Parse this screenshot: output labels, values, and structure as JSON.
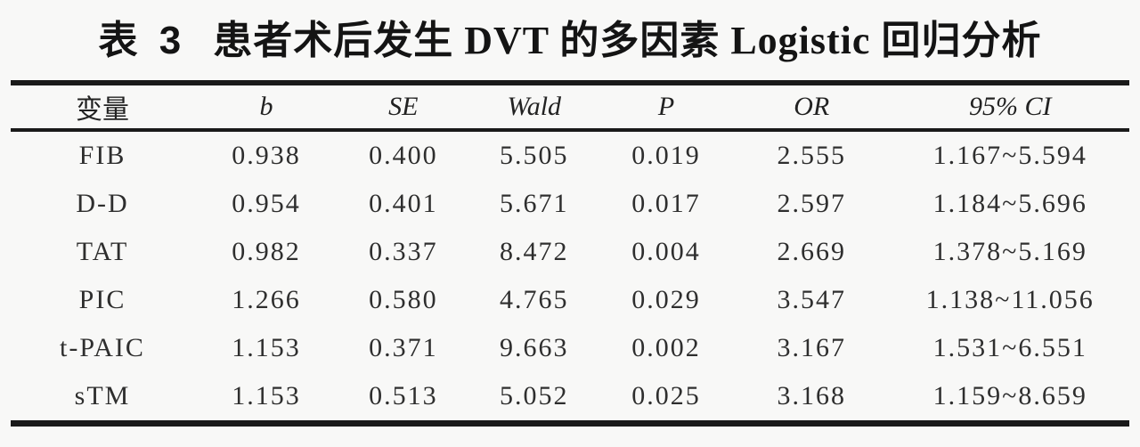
{
  "page": {
    "background": "#f8f8f7",
    "rule_color": "#1a1a1a",
    "text_color": "#2e2e2e"
  },
  "title": {
    "label": "表 3",
    "text": "患者术后发生 DVT 的多因素 Logistic 回归分析"
  },
  "table": {
    "columns": [
      {
        "label": "变量",
        "italic": false
      },
      {
        "label": "b",
        "italic": true
      },
      {
        "label": "SE",
        "italic": true
      },
      {
        "label": "Wald",
        "italic": true
      },
      {
        "label": "P",
        "italic": true
      },
      {
        "label": "OR",
        "italic": true
      },
      {
        "label": "95% CI",
        "italic": true
      }
    ],
    "rows": [
      [
        "FIB",
        "0.938",
        "0.400",
        "5.505",
        "0.019",
        "2.555",
        "1.167~5.594"
      ],
      [
        "D-D",
        "0.954",
        "0.401",
        "5.671",
        "0.017",
        "2.597",
        "1.184~5.696"
      ],
      [
        "TAT",
        "0.982",
        "0.337",
        "8.472",
        "0.004",
        "2.669",
        "1.378~5.169"
      ],
      [
        "PIC",
        "1.266",
        "0.580",
        "4.765",
        "0.029",
        "3.547",
        "1.138~11.056"
      ],
      [
        "t-PAIC",
        "1.153",
        "0.371",
        "9.663",
        "0.002",
        "3.167",
        "1.531~6.551"
      ],
      [
        "sTM",
        "1.153",
        "0.513",
        "5.052",
        "0.025",
        "3.168",
        "1.159~8.659"
      ]
    ]
  },
  "chart_data": {
    "type": "table",
    "title": "表 3 患者术后发生 DVT 的多因素 Logistic 回归分析",
    "columns": [
      "变量",
      "b",
      "SE",
      "Wald",
      "P",
      "OR",
      "95% CI"
    ],
    "rows": [
      [
        "FIB",
        0.938,
        0.4,
        5.505,
        0.019,
        2.555,
        "1.167~5.594"
      ],
      [
        "D-D",
        0.954,
        0.401,
        5.671,
        0.017,
        2.597,
        "1.184~5.696"
      ],
      [
        "TAT",
        0.982,
        0.337,
        8.472,
        0.004,
        2.669,
        "1.378~5.169"
      ],
      [
        "PIC",
        1.266,
        0.58,
        4.765,
        0.029,
        3.547,
        "1.138~11.056"
      ],
      [
        "t-PAIC",
        1.153,
        0.371,
        9.663,
        0.002,
        3.167,
        "1.531~6.551"
      ],
      [
        "sTM",
        1.153,
        0.513,
        5.052,
        0.025,
        3.168,
        "1.159~8.659"
      ]
    ]
  }
}
